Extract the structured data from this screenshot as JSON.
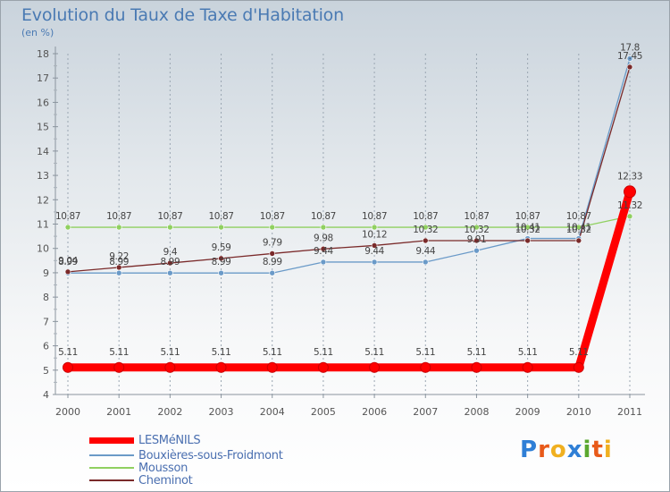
{
  "header": {
    "title": "Evolution du Taux de Taxe d'Habitation",
    "subtitle": "(en %)"
  },
  "logo": {
    "text": "Proxiti",
    "letter_colors": [
      "#2f7fd6",
      "#e85a1a",
      "#f0b020",
      "#2f7fd6",
      "#5aa830",
      "#e85a1a",
      "#f0b020"
    ]
  },
  "chart_data": {
    "type": "line",
    "title": "Evolution du Taux de Taxe d'Habitation",
    "subtitle": "(en %)",
    "xlabel": "",
    "ylabel": "",
    "x": [
      "2000",
      "2001",
      "2002",
      "2003",
      "2004",
      "2005",
      "2006",
      "2007",
      "2008",
      "2009",
      "2010",
      "2011"
    ],
    "ylim": [
      4,
      18
    ],
    "yticks": [
      "4",
      "5",
      "6",
      "7",
      "8",
      "9",
      "10",
      "11",
      "12",
      "13",
      "14",
      "15",
      "16",
      "17",
      "18"
    ],
    "grid": "vertical dashed",
    "legend_position": "bottom-left",
    "series": [
      {
        "name": "LESMéNILS",
        "color": "#ff0000",
        "values": [
          5.11,
          5.11,
          5.11,
          5.11,
          5.11,
          5.11,
          5.11,
          5.11,
          5.11,
          5.11,
          5.11,
          12.33
        ],
        "labels": [
          "5.11",
          "5.11",
          "5.11",
          "5.11",
          "5.11",
          "5.11",
          "5.11",
          "5.11",
          "5.11",
          "5.11",
          "5.11",
          "12.33"
        ]
      },
      {
        "name": "Bouxières-sous-Froidmont",
        "color": "#6a9ac8",
        "values": [
          8.99,
          8.99,
          8.99,
          8.99,
          8.99,
          9.44,
          9.44,
          9.44,
          9.91,
          10.41,
          10.41,
          17.8
        ],
        "labels": [
          "8.99",
          "8.99",
          "8.99",
          "8.99",
          "8.99",
          "9.44",
          "9.44",
          "9.44",
          "9.91",
          "10.41",
          "10.41",
          "17.8"
        ]
      },
      {
        "name": "Mousson",
        "color": "#90d060",
        "values": [
          10.87,
          10.87,
          10.87,
          10.87,
          10.87,
          10.87,
          10.87,
          10.87,
          10.87,
          10.87,
          10.87,
          11.32
        ],
        "labels": [
          "10.87",
          "10.87",
          "10.87",
          "10.87",
          "10.87",
          "10.87",
          "10.87",
          "10.87",
          "10.87",
          "10.87",
          "10.87",
          "11.32"
        ]
      },
      {
        "name": "Cheminot",
        "color": "#7a2a2a",
        "values": [
          9.04,
          9.22,
          9.4,
          9.59,
          9.79,
          9.98,
          10.12,
          10.32,
          10.32,
          10.32,
          10.32,
          17.45
        ],
        "labels": [
          "9.04",
          "9.22",
          "9.4",
          "9.59",
          "9.79",
          "9.98",
          "10.12",
          "10.32",
          "10.32",
          "10.32",
          "10.32",
          "17.45"
        ]
      }
    ]
  }
}
